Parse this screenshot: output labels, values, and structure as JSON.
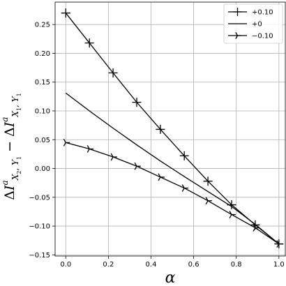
{
  "chart_data": {
    "type": "line",
    "xlabel": "α",
    "ylabel": "ΔI^a_{X2,Y1} − ΔI^a_{X1,Y1}",
    "xlim": [
      -0.05,
      1.03
    ],
    "ylim": [
      -0.152,
      0.289
    ],
    "xticks": [
      0.0,
      0.2,
      0.4,
      0.6,
      0.8,
      1.0
    ],
    "xtick_labels": [
      "0.0",
      "0.2",
      "0.4",
      "0.6",
      "0.8",
      "1.0"
    ],
    "yticks": [
      -0.15,
      -0.1,
      -0.05,
      0.0,
      0.05,
      0.1,
      0.15,
      0.2,
      0.25
    ],
    "ytick_labels": [
      "−0.15",
      "−0.10",
      "−0.05",
      "0.00",
      "0.05",
      "0.10",
      "0.15",
      "0.20",
      "0.25"
    ],
    "grid": true,
    "legend_position": "top-right",
    "colors": {
      "line": "#000000",
      "grid": "#b0b0b0"
    },
    "x": [
      0.0,
      0.111,
      0.222,
      0.333,
      0.444,
      0.556,
      0.667,
      0.778,
      0.889,
      1.0
    ],
    "series": [
      {
        "name": "+0.10",
        "marker": "plus",
        "values": [
          0.27,
          0.218,
          0.166,
          0.115,
          0.068,
          0.022,
          -0.022,
          -0.063,
          -0.098,
          -0.131
        ]
      },
      {
        "name": "+0",
        "marker": "none",
        "values": [
          0.131,
          0.1,
          0.07,
          0.041,
          0.013,
          -0.014,
          -0.04,
          -0.066,
          -0.097,
          -0.131
        ]
      },
      {
        "name": "−0.10",
        "marker": "tri_right",
        "values": [
          0.045,
          0.034,
          0.02,
          0.004,
          -0.015,
          -0.034,
          -0.056,
          -0.08,
          -0.103,
          -0.131
        ]
      }
    ]
  }
}
